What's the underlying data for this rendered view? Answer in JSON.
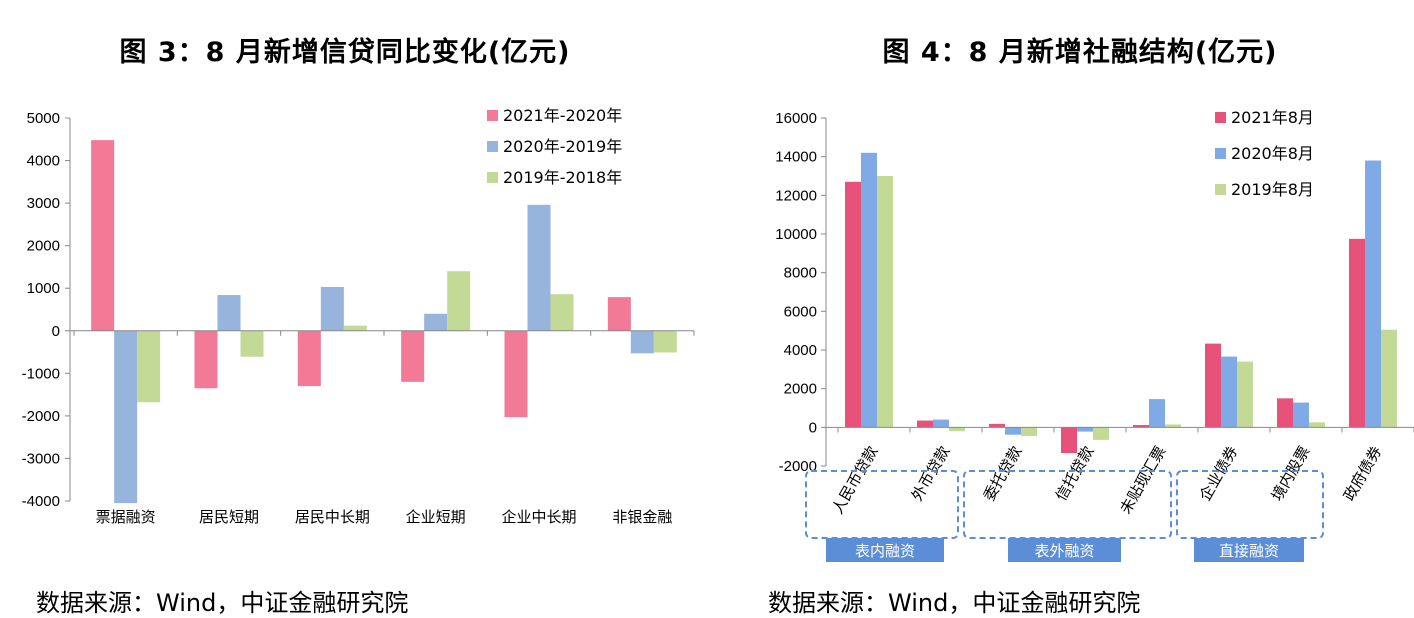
{
  "left": {
    "title": "图 3：8 月新增信贷同比变化(亿元)",
    "source": "数据来源：Wind，中证金融研究院"
  },
  "right": {
    "title": "图 4：8 月新增社融结构(亿元)",
    "source": "数据来源：Wind，中证金融研究院",
    "groups": [
      "表内融资",
      "表外融资",
      "直接融资"
    ]
  },
  "chart_data": [
    {
      "type": "bar",
      "categories": [
        "票据融资",
        "居民短期",
        "居民中长期",
        "企业短期",
        "企业中长期",
        "非银金融"
      ],
      "series": [
        {
          "name": "2021年-2020年",
          "color": "#F27A96",
          "values": [
            4480,
            -1350,
            -1300,
            -1200,
            -2030,
            790
          ]
        },
        {
          "name": "2020年-2019年",
          "color": "#96B4DC",
          "values": [
            -4050,
            840,
            1030,
            400,
            2960,
            -530
          ]
        },
        {
          "name": "2019年-2018年",
          "color": "#C3DA96",
          "values": [
            -1680,
            -610,
            120,
            1400,
            860,
            -510
          ]
        }
      ],
      "ylim": [
        -4000,
        5000
      ],
      "yticks": [
        5000,
        4000,
        3000,
        2000,
        1000,
        0,
        -1000,
        -2000,
        -3000,
        -4000
      ],
      "legend_position": "top-right",
      "grid": false
    },
    {
      "type": "bar",
      "categories": [
        "人民币贷款",
        "外币贷款",
        "委托贷款",
        "信托贷款",
        "未贴现汇票",
        "企业债券",
        "境内股票",
        "政府债券"
      ],
      "series": [
        {
          "name": "2021年8月",
          "color": "#E8517A",
          "values": [
            12700,
            350,
            180,
            -1330,
            120,
            4330,
            1500,
            9750
          ]
        },
        {
          "name": "2020年8月",
          "color": "#7FAAE6",
          "values": [
            14200,
            400,
            -380,
            -220,
            1460,
            3660,
            1280,
            13800
          ]
        },
        {
          "name": "2019年8月",
          "color": "#C3DA96",
          "values": [
            13000,
            -200,
            -450,
            -650,
            150,
            3400,
            260,
            5050
          ]
        }
      ],
      "ylim": [
        -2000,
        16000
      ],
      "yticks": [
        16000,
        14000,
        12000,
        10000,
        8000,
        6000,
        4000,
        2000,
        0,
        -2000
      ],
      "legend_position": "top-right",
      "grid": false
    }
  ]
}
